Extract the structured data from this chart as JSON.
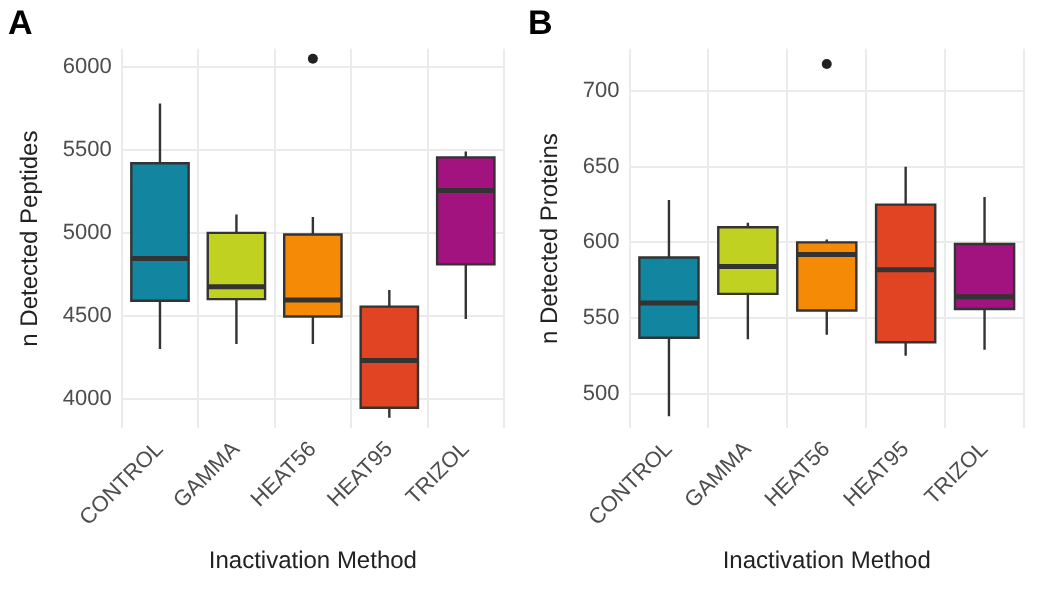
{
  "chart_data": [
    {
      "type": "box",
      "title": "A",
      "xlabel": "Inactivation Method",
      "ylabel": "n Detected Peptides",
      "categories": [
        "CONTROL",
        "GAMMA",
        "HEAT56",
        "HEAT95",
        "TRIZOL"
      ],
      "colors": [
        "#1286a0",
        "#c1d121",
        "#f58a07",
        "#e04423",
        "#a2137f"
      ],
      "boxes": [
        {
          "low": 4300,
          "q1": 4590,
          "median": 4845,
          "q3": 5420,
          "high": 5780
        },
        {
          "low": 4330,
          "q1": 4600,
          "median": 4675,
          "q3": 5000,
          "high": 5110
        },
        {
          "low": 4330,
          "q1": 4495,
          "median": 4595,
          "q3": 4990,
          "high": 5095,
          "outliers": [
            6050
          ]
        },
        {
          "low": 3885,
          "q1": 3945,
          "median": 4230,
          "q3": 4555,
          "high": 4655
        },
        {
          "low": 4480,
          "q1": 4810,
          "median": 5255,
          "q3": 5455,
          "high": 5490
        }
      ],
      "ylim": [
        3820,
        6110
      ],
      "yticks": [
        4000,
        4500,
        5000,
        5500,
        6000
      ],
      "grid": true
    },
    {
      "type": "box",
      "title": "B",
      "xlabel": "Inactivation Method",
      "ylabel": "n Detected Proteins",
      "categories": [
        "CONTROL",
        "GAMMA",
        "HEAT56",
        "HEAT95",
        "TRIZOL"
      ],
      "colors": [
        "#1286a0",
        "#c1d121",
        "#f58a07",
        "#e04423",
        "#a2137f"
      ],
      "boxes": [
        {
          "low": 485,
          "q1": 537,
          "median": 560,
          "q3": 590,
          "high": 628
        },
        {
          "low": 536,
          "q1": 566,
          "median": 584,
          "q3": 610,
          "high": 613
        },
        {
          "low": 539,
          "q1": 555,
          "median": 592,
          "q3": 600,
          "high": 602,
          "outliers": [
            718
          ]
        },
        {
          "low": 525,
          "q1": 534,
          "median": 582,
          "q3": 625,
          "high": 650
        },
        {
          "low": 529,
          "q1": 556,
          "median": 564,
          "q3": 599,
          "high": 630
        }
      ],
      "ylim": [
        477,
        728
      ],
      "yticks": [
        500,
        550,
        600,
        650,
        700
      ],
      "grid": true
    }
  ]
}
